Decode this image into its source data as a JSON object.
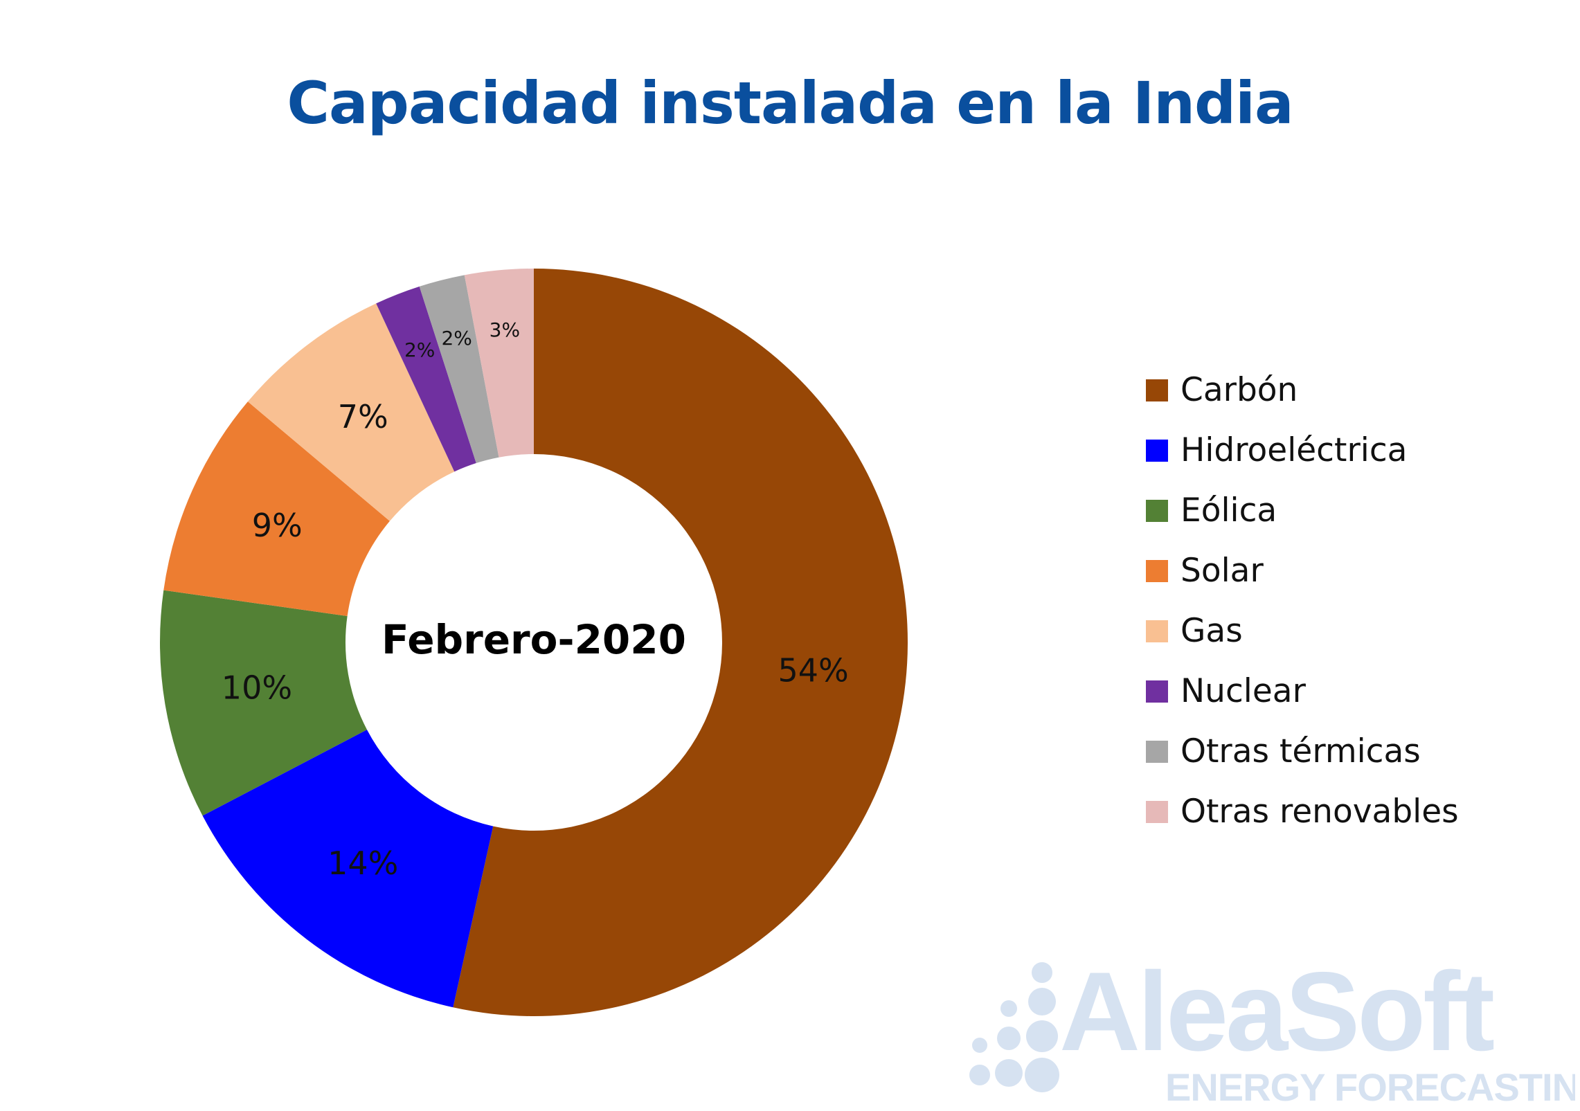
{
  "chart_data": {
    "type": "pie",
    "title": "Capacidad instalada en la India",
    "center_label": "Febrero-2020",
    "legend_position": "right",
    "slices": [
      {
        "name": "Carbón",
        "value": 54,
        "label": "54%",
        "color": "#974706"
      },
      {
        "name": "Hidroeléctrica",
        "value": 14,
        "label": "14%",
        "color": "#0000ff"
      },
      {
        "name": "Eólica",
        "value": 10,
        "label": "10%",
        "color": "#538135"
      },
      {
        "name": "Solar",
        "value": 9,
        "label": "9%",
        "color": "#ed7d31"
      },
      {
        "name": "Gas",
        "value": 7,
        "label": "7%",
        "color": "#f9c092"
      },
      {
        "name": "Nuclear",
        "value": 2,
        "label": "2%",
        "color": "#7030a0"
      },
      {
        "name": "Otras térmicas",
        "value": 2,
        "label": "2%",
        "color": "#a6a6a6"
      },
      {
        "name": "Otras renovables",
        "value": 3,
        "label": "3%",
        "color": "#e6b9b8"
      }
    ]
  },
  "watermark": {
    "brand": "AleaSoft",
    "tagline": "ENERGY FORECASTING",
    "color": "#d6e2f1"
  }
}
